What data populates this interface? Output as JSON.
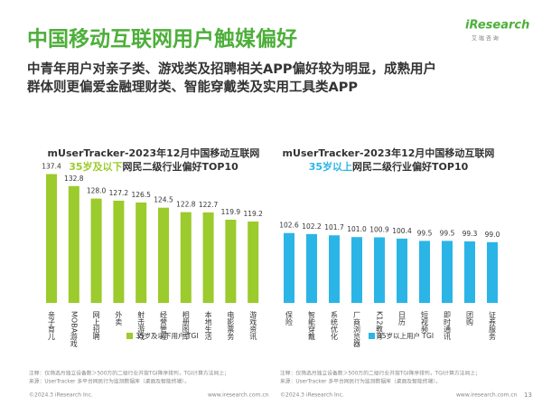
{
  "header": {
    "title": "中国移动互联网用户触媒偏好",
    "subtitle": [
      "中青年用户对亲子类、游戏类及招聘相关APP偏好较为明显，成熟用户",
      "群体则更偏爱金融理财类、智能穿戴类及实用工具类APP"
    ],
    "logo": "iResearch",
    "logo_sub": "艾 瑞 咨 询"
  },
  "chart_data": [
    {
      "type": "bar",
      "title": "mUserTracker-2023年12月中国移动互联网",
      "title_highlight": "35岁及以下",
      "title_rest": "网民二级行业偏好TOP10",
      "categories": [
        "亲子育儿",
        "MOBA游戏",
        "网上招聘",
        "外卖",
        "射击游戏",
        "经营管理",
        "相册图库",
        "本地生活",
        "电影票务",
        "游戏资讯"
      ],
      "series": [
        {
          "name": "35岁及以下用户 TGI",
          "color": "#9bcb2c",
          "values": [
            137.4,
            132.8,
            128.0,
            127.2,
            126.5,
            124.5,
            122.8,
            122.7,
            119.9,
            119.2
          ],
          "value_labels": [
            "137.4",
            "132.8",
            "128.0",
            "127.2",
            "126.5",
            "124.5",
            "122.8",
            "122.7",
            "119.9",
            "119.2"
          ]
        }
      ],
      "ylim": [
        88,
        140
      ],
      "note": [
        "注释：仅筛选月独立设备数＞500万的二级行业并按TGI降序排列，TGI计算方法同上；",
        "来源：UserTracker 多平台网民行为监测数据库（桌面及智能终端）。"
      ],
      "copyright": "©2024.3 iResearch Inc.",
      "website": "www.iresearch.com.cn"
    },
    {
      "type": "bar",
      "title": "mUserTracker-2023年12月中国移动互联网",
      "title_highlight": "35岁以上",
      "title_rest": "网民二级行业偏好TOP10",
      "categories": [
        "保险",
        "智能穿戴",
        "系统优化",
        "厂商浏览器",
        "K12教育",
        "日历",
        "短视频",
        "即时通讯",
        "团购",
        "证券服务"
      ],
      "series": [
        {
          "name": "35岁以上用户 TGI",
          "color": "#2bb5e6",
          "values": [
            102.6,
            102.2,
            101.7,
            101.0,
            100.9,
            100.4,
            99.5,
            99.5,
            99.3,
            99.0
          ],
          "value_labels": [
            "102.6",
            "102.2",
            "101.7",
            "101.0",
            "100.9",
            "100.4",
            "99.5",
            "99.5",
            "99.3",
            "99.0"
          ]
        }
      ],
      "ylim": [
        75,
        110
      ],
      "note": [
        "注释：仅筛选月独立设备数＞500万的二级行业并按TGI降序排列，TGI计算方法同上；",
        "来源：UserTracker 多平台网民行为监测数据库（桌面及智能终端）。"
      ],
      "copyright": "©2024.3 iResearch Inc.",
      "website": "www.iresearch.com.cn"
    }
  ],
  "page_number": "13"
}
